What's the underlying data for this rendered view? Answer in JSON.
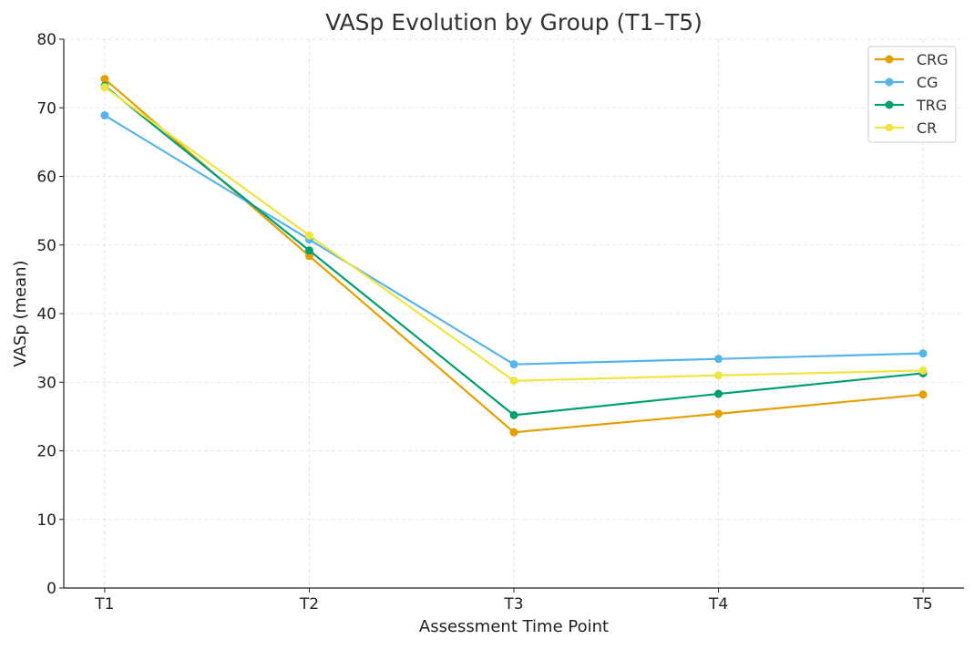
{
  "chart_data": {
    "type": "line",
    "title": "VASp Evolution by Group (T1–T5)",
    "xlabel": "Assessment Time Point",
    "ylabel": "VASp (mean)",
    "categories": [
      "T1",
      "T2",
      "T3",
      "T4",
      "T5"
    ],
    "ylim": [
      0,
      80
    ],
    "yticks": [
      0,
      10,
      20,
      30,
      40,
      50,
      60,
      70,
      80
    ],
    "grid": true,
    "legend_position": "top-right",
    "series": [
      {
        "name": "CRG",
        "color": "#E69F00",
        "values": [
          74.2,
          48.4,
          22.7,
          25.4,
          28.2
        ]
      },
      {
        "name": "CG",
        "color": "#56B4E9",
        "values": [
          68.9,
          50.8,
          32.6,
          33.4,
          34.2
        ]
      },
      {
        "name": "TRG",
        "color": "#009E73",
        "values": [
          73.2,
          49.2,
          25.2,
          28.3,
          31.3
        ]
      },
      {
        "name": "CR",
        "color": "#F0E442",
        "values": [
          73.0,
          51.4,
          30.2,
          31.0,
          31.7
        ]
      }
    ]
  }
}
